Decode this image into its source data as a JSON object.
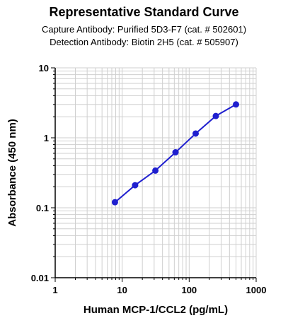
{
  "chart_data": {
    "type": "line",
    "title": "Representative Standard Curve",
    "subtitle_lines": [
      "Capture Antibody: Purified 5D3-F7 (cat. # 502601)",
      "Detection Antibody: Biotin 2H5 (cat. # 505907)"
    ],
    "xlabel": "Human MCP-1/CCL2 (pg/mL)",
    "ylabel": "Absorbance (450 nm)",
    "x_scale": "log",
    "y_scale": "log",
    "xlim": [
      1,
      1000
    ],
    "ylim": [
      0.01,
      10
    ],
    "x_ticks": [
      "1",
      "10",
      "100",
      "1000"
    ],
    "y_ticks": [
      "0.01",
      "0.1",
      "1",
      "10"
    ],
    "grid": true,
    "series": [
      {
        "color": "#1f1fcf",
        "x": [
          7.8,
          15.6,
          31.3,
          62.5,
          125,
          250,
          500
        ],
        "y": [
          0.12,
          0.21,
          0.34,
          0.62,
          1.15,
          2.05,
          3.0
        ]
      }
    ]
  }
}
